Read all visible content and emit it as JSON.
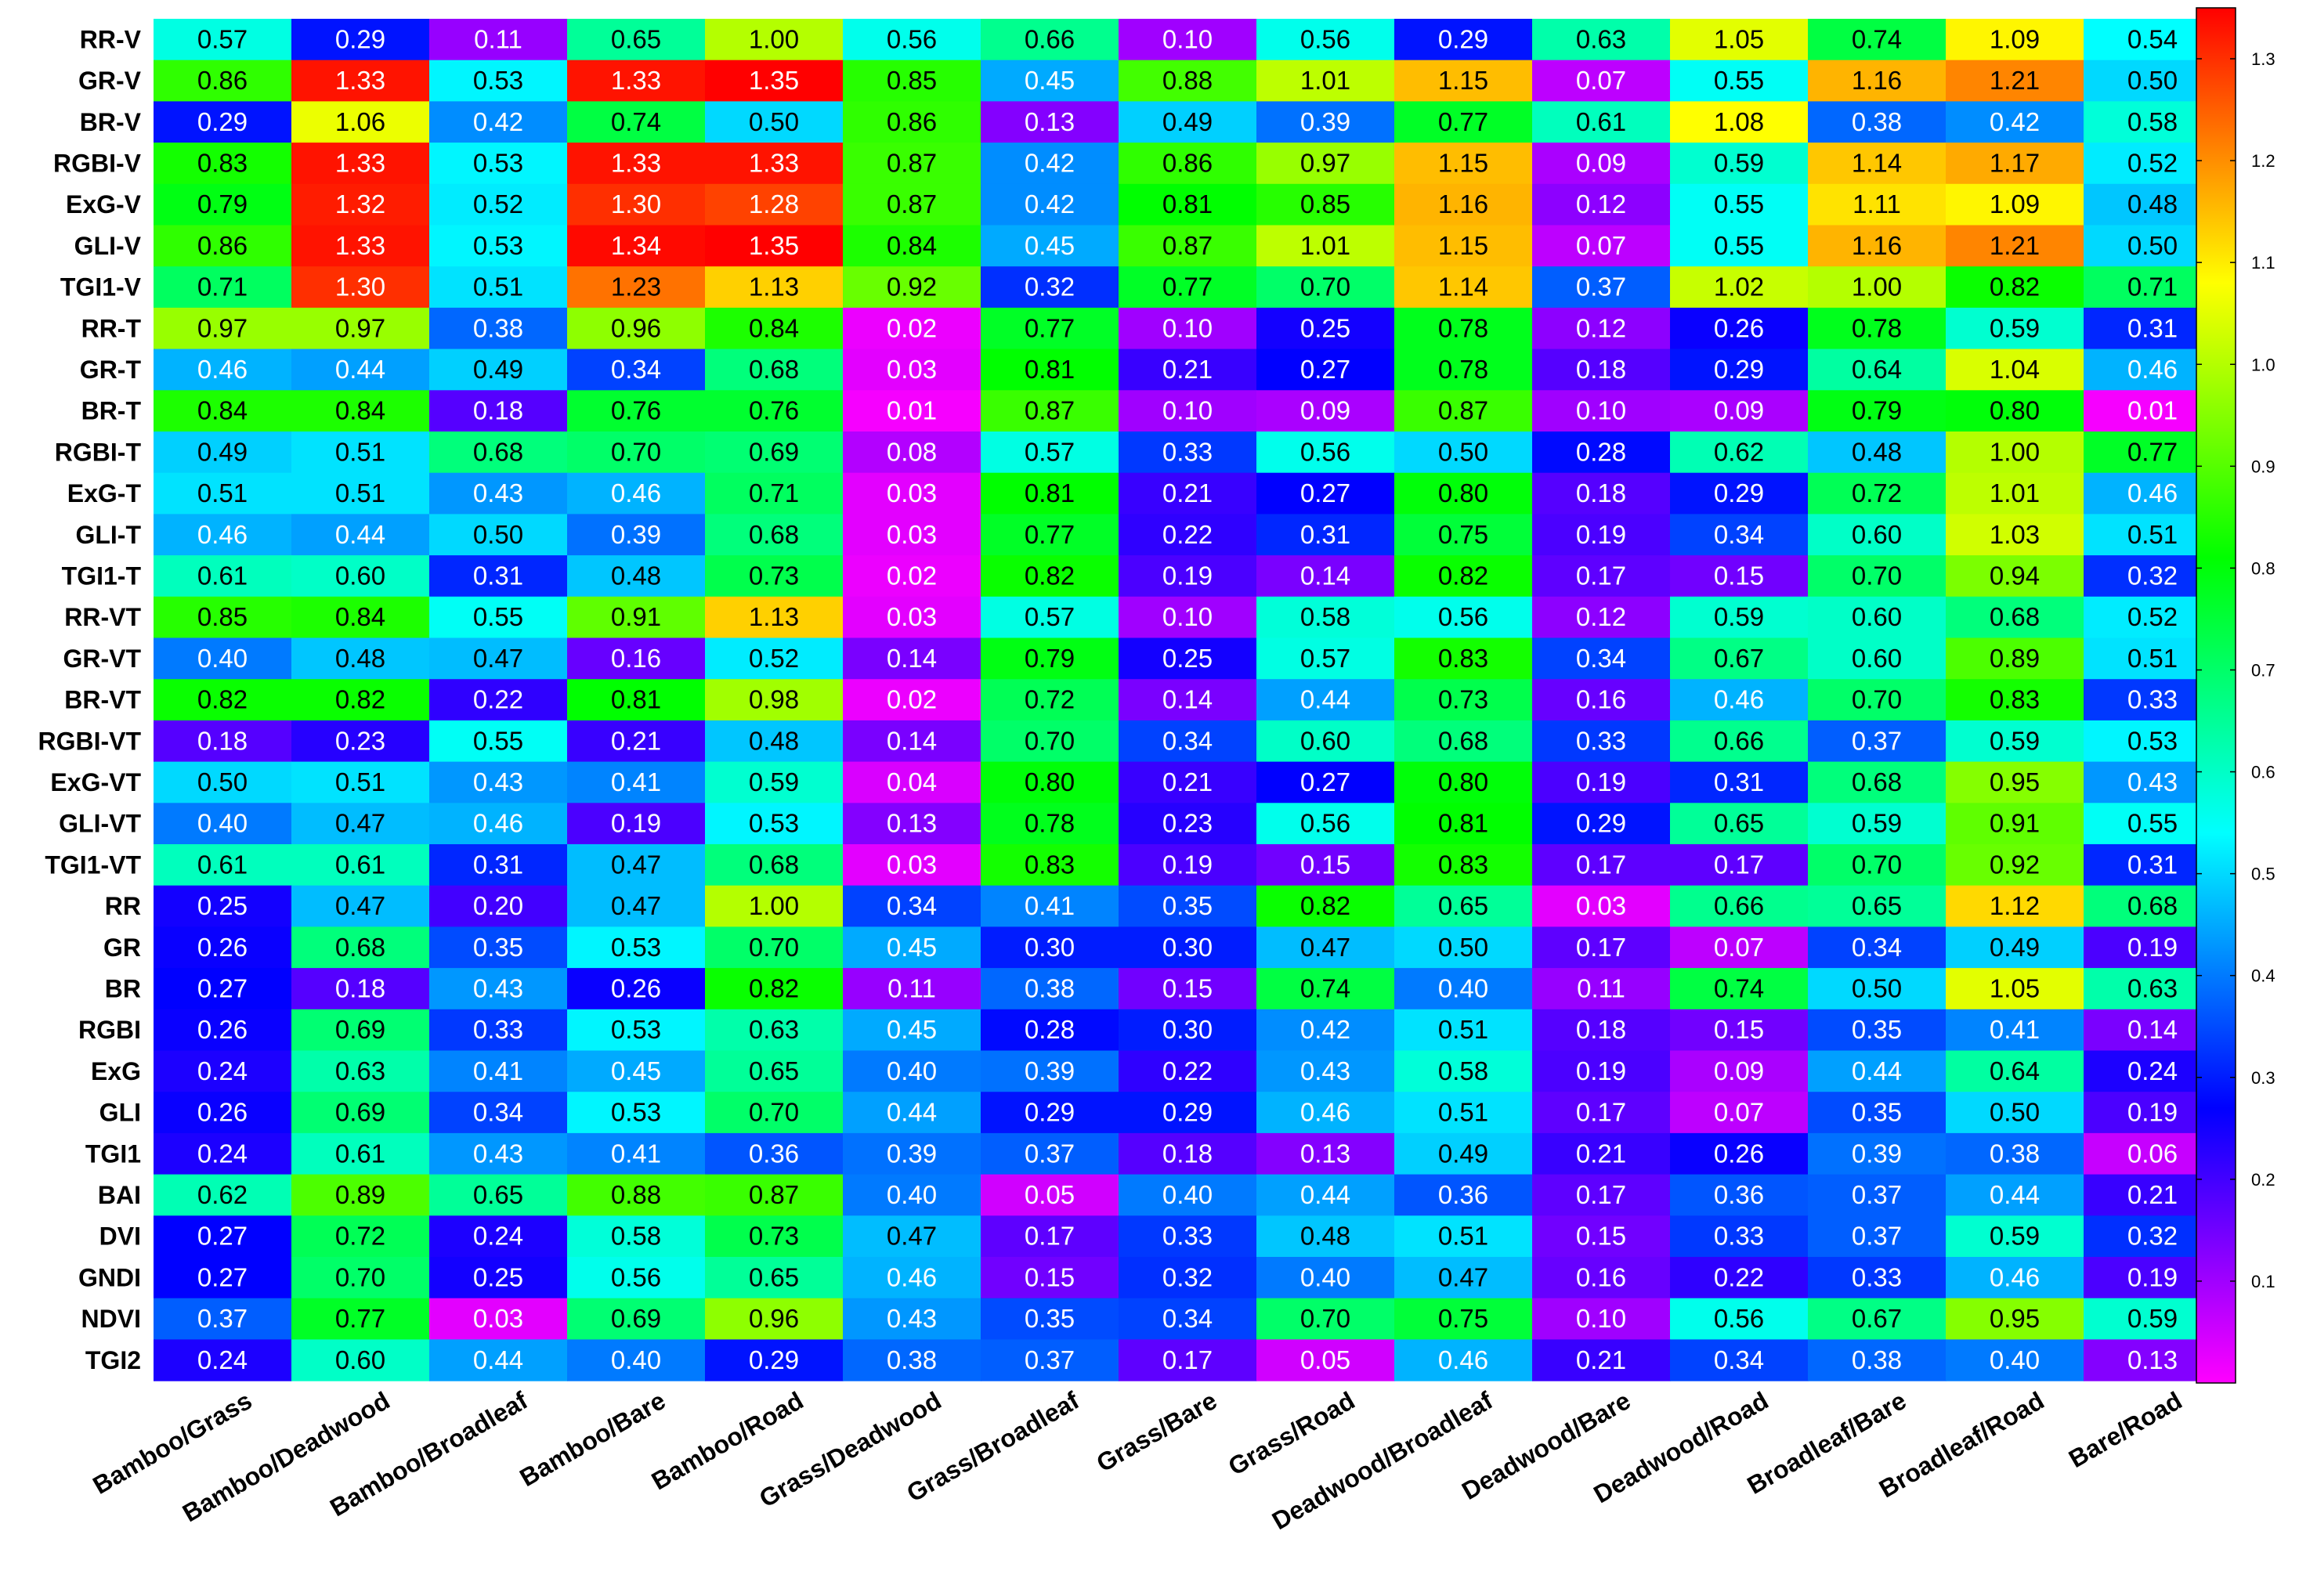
{
  "chart_data": {
    "type": "heatmap",
    "title": "",
    "xlabel": "",
    "ylabel": "",
    "categories": [
      "Bamboo/Grass",
      "Bamboo/Deadwood",
      "Bamboo/Broadleaf",
      "Bamboo/Bare",
      "Bamboo/Road",
      "Grass/Deadwood",
      "Grass/Broadleaf",
      "Grass/Bare",
      "Grass/Road",
      "Deadwood/Broadleaf",
      "Deadwood/Bare",
      "Deadwood/Road",
      "Broadleaf/Bare",
      "Broadleaf/Road",
      "Bare/Road"
    ],
    "rows": [
      "RR-V",
      "GR-V",
      "BR-V",
      "RGBI-V",
      "ExG-V",
      "GLI-V",
      "TGI1-V",
      "RR-T",
      "GR-T",
      "BR-T",
      "RGBI-T",
      "ExG-T",
      "GLI-T",
      "TGI1-T",
      "RR-VT",
      "GR-VT",
      "BR-VT",
      "RGBI-VT",
      "ExG-VT",
      "GLI-VT",
      "TGI1-VT",
      "RR",
      "GR",
      "BR",
      "RGBI",
      "ExG",
      "GLI",
      "TGI1",
      "BAI",
      "DVI",
      "GNDI",
      "NDVI",
      "TGI2"
    ],
    "values": [
      [
        "0.57",
        "0.29",
        "0.11",
        "0.65",
        "1.00",
        "0.56",
        "0.66",
        "0.10",
        "0.56",
        "0.29",
        "0.63",
        "1.05",
        "0.74",
        "1.09",
        "0.54"
      ],
      [
        "0.86",
        "1.33",
        "0.53",
        "1.33",
        "1.35",
        "0.85",
        "0.45",
        "0.88",
        "1.01",
        "1.15",
        "0.07",
        "0.55",
        "1.16",
        "1.21",
        "0.50"
      ],
      [
        "0.29",
        "1.06",
        "0.42",
        "0.74",
        "0.50",
        "0.86",
        "0.13",
        "0.49",
        "0.39",
        "0.77",
        "0.61",
        "1.08",
        "0.38",
        "0.42",
        "0.58"
      ],
      [
        "0.83",
        "1.33",
        "0.53",
        "1.33",
        "1.33",
        "0.87",
        "0.42",
        "0.86",
        "0.97",
        "1.15",
        "0.09",
        "0.59",
        "1.14",
        "1.17",
        "0.52"
      ],
      [
        "0.79",
        "1.32",
        "0.52",
        "1.30",
        "1.28",
        "0.87",
        "0.42",
        "0.81",
        "0.85",
        "1.16",
        "0.12",
        "0.55",
        "1.11",
        "1.09",
        "0.48"
      ],
      [
        "0.86",
        "1.33",
        "0.53",
        "1.34",
        "1.35",
        "0.84",
        "0.45",
        "0.87",
        "1.01",
        "1.15",
        "0.07",
        "0.55",
        "1.16",
        "1.21",
        "0.50"
      ],
      [
        "0.71",
        "1.30",
        "0.51",
        "1.23",
        "1.13",
        "0.92",
        "0.32",
        "0.77",
        "0.70",
        "1.14",
        "0.37",
        "1.02",
        "1.00",
        "0.82",
        "0.71"
      ],
      [
        "0.97",
        "0.97",
        "0.38",
        "0.96",
        "0.84",
        "0.02",
        "0.77",
        "0.10",
        "0.25",
        "0.78",
        "0.12",
        "0.26",
        "0.78",
        "0.59",
        "0.31"
      ],
      [
        "0.46",
        "0.44",
        "0.49",
        "0.34",
        "0.68",
        "0.03",
        "0.81",
        "0.21",
        "0.27",
        "0.78",
        "0.18",
        "0.29",
        "0.64",
        "1.04",
        "0.46"
      ],
      [
        "0.84",
        "0.84",
        "0.18",
        "0.76",
        "0.76",
        "0.01",
        "0.87",
        "0.10",
        "0.09",
        "0.87",
        "0.10",
        "0.09",
        "0.79",
        "0.80",
        "0.01"
      ],
      [
        "0.49",
        "0.51",
        "0.68",
        "0.70",
        "0.69",
        "0.08",
        "0.57",
        "0.33",
        "0.56",
        "0.50",
        "0.28",
        "0.62",
        "0.48",
        "1.00",
        "0.77"
      ],
      [
        "0.51",
        "0.51",
        "0.43",
        "0.46",
        "0.71",
        "0.03",
        "0.81",
        "0.21",
        "0.27",
        "0.80",
        "0.18",
        "0.29",
        "0.72",
        "1.01",
        "0.46"
      ],
      [
        "0.46",
        "0.44",
        "0.50",
        "0.39",
        "0.68",
        "0.03",
        "0.77",
        "0.22",
        "0.31",
        "0.75",
        "0.19",
        "0.34",
        "0.60",
        "1.03",
        "0.51"
      ],
      [
        "0.61",
        "0.60",
        "0.31",
        "0.48",
        "0.73",
        "0.02",
        "0.82",
        "0.19",
        "0.14",
        "0.82",
        "0.17",
        "0.15",
        "0.70",
        "0.94",
        "0.32"
      ],
      [
        "0.85",
        "0.84",
        "0.55",
        "0.91",
        "1.13",
        "0.03",
        "0.57",
        "0.10",
        "0.58",
        "0.56",
        "0.12",
        "0.59",
        "0.60",
        "0.68",
        "0.52"
      ],
      [
        "0.40",
        "0.48",
        "0.47",
        "0.16",
        "0.52",
        "0.14",
        "0.79",
        "0.25",
        "0.57",
        "0.83",
        "0.34",
        "0.67",
        "0.60",
        "0.89",
        "0.51"
      ],
      [
        "0.82",
        "0.82",
        "0.22",
        "0.81",
        "0.98",
        "0.02",
        "0.72",
        "0.14",
        "0.44",
        "0.73",
        "0.16",
        "0.46",
        "0.70",
        "0.83",
        "0.33"
      ],
      [
        "0.18",
        "0.23",
        "0.55",
        "0.21",
        "0.48",
        "0.14",
        "0.70",
        "0.34",
        "0.60",
        "0.68",
        "0.33",
        "0.66",
        "0.37",
        "0.59",
        "0.53"
      ],
      [
        "0.50",
        "0.51",
        "0.43",
        "0.41",
        "0.59",
        "0.04",
        "0.80",
        "0.21",
        "0.27",
        "0.80",
        "0.19",
        "0.31",
        "0.68",
        "0.95",
        "0.43"
      ],
      [
        "0.40",
        "0.47",
        "0.46",
        "0.19",
        "0.53",
        "0.13",
        "0.78",
        "0.23",
        "0.56",
        "0.81",
        "0.29",
        "0.65",
        "0.59",
        "0.91",
        "0.55"
      ],
      [
        "0.61",
        "0.61",
        "0.31",
        "0.47",
        "0.68",
        "0.03",
        "0.83",
        "0.19",
        "0.15",
        "0.83",
        "0.17",
        "0.17",
        "0.70",
        "0.92",
        "0.31"
      ],
      [
        "0.25",
        "0.47",
        "0.20",
        "0.47",
        "1.00",
        "0.34",
        "0.41",
        "0.35",
        "0.82",
        "0.65",
        "0.03",
        "0.66",
        "0.65",
        "1.12",
        "0.68"
      ],
      [
        "0.26",
        "0.68",
        "0.35",
        "0.53",
        "0.70",
        "0.45",
        "0.30",
        "0.30",
        "0.47",
        "0.50",
        "0.17",
        "0.07",
        "0.34",
        "0.49",
        "0.19"
      ],
      [
        "0.27",
        "0.18",
        "0.43",
        "0.26",
        "0.82",
        "0.11",
        "0.38",
        "0.15",
        "0.74",
        "0.40",
        "0.11",
        "0.74",
        "0.50",
        "1.05",
        "0.63"
      ],
      [
        "0.26",
        "0.69",
        "0.33",
        "0.53",
        "0.63",
        "0.45",
        "0.28",
        "0.30",
        "0.42",
        "0.51",
        "0.18",
        "0.15",
        "0.35",
        "0.41",
        "0.14"
      ],
      [
        "0.24",
        "0.63",
        "0.41",
        "0.45",
        "0.65",
        "0.40",
        "0.39",
        "0.22",
        "0.43",
        "0.58",
        "0.19",
        "0.09",
        "0.44",
        "0.64",
        "0.24"
      ],
      [
        "0.26",
        "0.69",
        "0.34",
        "0.53",
        "0.70",
        "0.44",
        "0.29",
        "0.29",
        "0.46",
        "0.51",
        "0.17",
        "0.07",
        "0.35",
        "0.50",
        "0.19"
      ],
      [
        "0.24",
        "0.61",
        "0.43",
        "0.41",
        "0.36",
        "0.39",
        "0.37",
        "0.18",
        "0.13",
        "0.49",
        "0.21",
        "0.26",
        "0.39",
        "0.38",
        "0.06"
      ],
      [
        "0.62",
        "0.89",
        "0.65",
        "0.88",
        "0.87",
        "0.40",
        "0.05",
        "0.40",
        "0.44",
        "0.36",
        "0.17",
        "0.36",
        "0.37",
        "0.44",
        "0.21"
      ],
      [
        "0.27",
        "0.72",
        "0.24",
        "0.58",
        "0.73",
        "0.47",
        "0.17",
        "0.33",
        "0.48",
        "0.51",
        "0.15",
        "0.33",
        "0.37",
        "0.59",
        "0.32"
      ],
      [
        "0.27",
        "0.70",
        "0.25",
        "0.56",
        "0.65",
        "0.46",
        "0.15",
        "0.32",
        "0.40",
        "0.47",
        "0.16",
        "0.22",
        "0.33",
        "0.46",
        "0.19"
      ],
      [
        "0.37",
        "0.77",
        "0.03",
        "0.69",
        "0.96",
        "0.43",
        "0.35",
        "0.34",
        "0.70",
        "0.75",
        "0.10",
        "0.56",
        "0.67",
        "0.95",
        "0.59"
      ],
      [
        "0.24",
        "0.60",
        "0.44",
        "0.40",
        "0.29",
        "0.38",
        "0.37",
        "0.17",
        "0.05",
        "0.46",
        "0.21",
        "0.34",
        "0.38",
        "0.40",
        "0.13"
      ]
    ],
    "colorbar": {
      "range": [
        0.0,
        1.35
      ],
      "ticks": [
        "0.1",
        "0.2",
        "0.3",
        "0.4",
        "0.5",
        "0.6",
        "0.7",
        "0.8",
        "0.9",
        "1.0",
        "1.1",
        "1.2",
        "1.3"
      ],
      "colormap": [
        "#ff00ff",
        "#7f00ff",
        "#0000ff",
        "#007fff",
        "#00ffff",
        "#00ff80",
        "#00ff00",
        "#80ff00",
        "#ffff00",
        "#ff8000",
        "#ff0000"
      ]
    },
    "grid": false,
    "legend_position": "right"
  }
}
